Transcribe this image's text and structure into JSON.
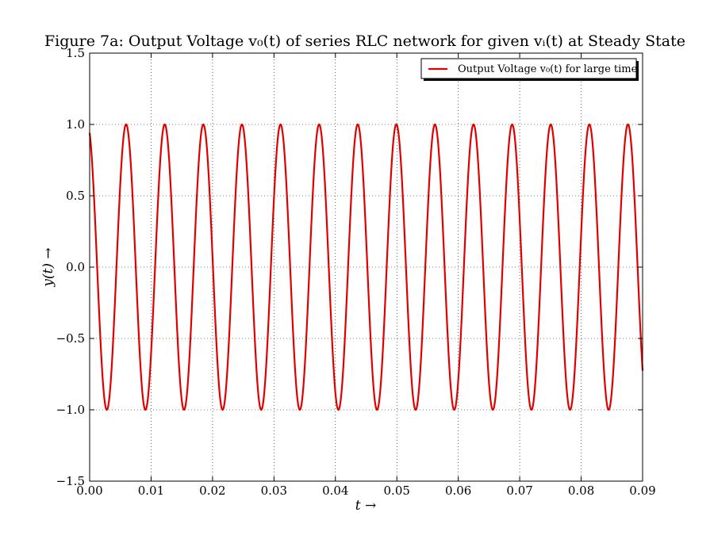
{
  "chart_data": {
    "type": "line",
    "title": "Figure 7a: Output Voltage v₀(t) of series RLC network for given vᵢ(t) at Steady State",
    "xlabel": "t →",
    "ylabel": "y(t) →",
    "xlim": [
      0.0,
      0.09
    ],
    "ylim": [
      -1.5,
      1.5
    ],
    "xticks": [
      0.0,
      0.01,
      0.02,
      0.03,
      0.04,
      0.05,
      0.06,
      0.07,
      0.08,
      0.09
    ],
    "xtick_labels": [
      "0.00",
      "0.01",
      "0.02",
      "0.03",
      "0.04",
      "0.05",
      "0.06",
      "0.07",
      "0.08",
      "0.09"
    ],
    "yticks": [
      -1.5,
      -1.0,
      -0.5,
      0.0,
      0.5,
      1.0,
      1.5
    ],
    "ytick_labels": [
      "−1.5",
      "−1.0",
      "−0.5",
      "0.0",
      "0.5",
      "1.0",
      "1.5"
    ],
    "grid": true,
    "legend_position": "top-right",
    "series": [
      {
        "name": "Output Voltage v₀(t) for large time",
        "color": "#e00000",
        "function": "sine",
        "amplitude": 1.0,
        "frequency_hz": 159.155,
        "initial_value": 0.94,
        "initial_slope": "negative",
        "x_start": 0.0,
        "x_end": 0.09
      }
    ]
  }
}
